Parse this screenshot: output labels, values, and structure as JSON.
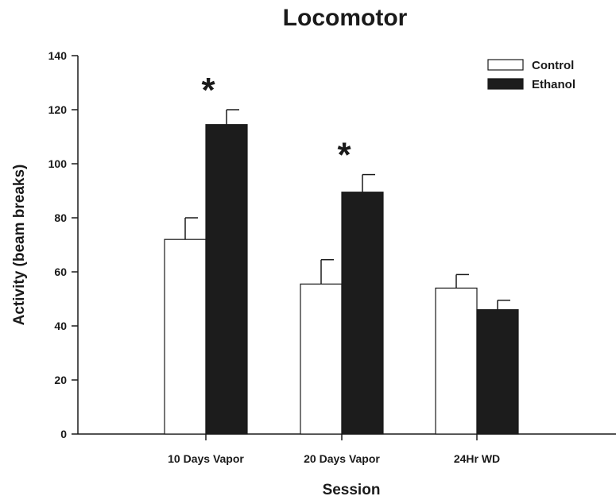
{
  "chart_data": {
    "type": "bar",
    "title": "Locomotor",
    "xlabel": "Session",
    "ylabel": "Activity (beam breaks)",
    "categories": [
      "10 Days Vapor",
      "20 Days Vapor",
      "24Hr WD"
    ],
    "ylim": [
      0,
      140
    ],
    "yticks": [
      0,
      20,
      40,
      60,
      80,
      100,
      120,
      140
    ],
    "grid": false,
    "legend_position": "top-right",
    "series": [
      {
        "name": "Control",
        "values": [
          72,
          55.5,
          54
        ],
        "errors": [
          8,
          9,
          5
        ],
        "color": "#ffffff"
      },
      {
        "name": "Ethanol",
        "values": [
          114.5,
          89.5,
          46
        ],
        "errors": [
          5.5,
          6.5,
          3.5
        ],
        "color": "#1c1c1c"
      }
    ],
    "annotations": [
      {
        "text": "*",
        "category_index": 0
      },
      {
        "text": "*",
        "category_index": 1
      }
    ]
  }
}
